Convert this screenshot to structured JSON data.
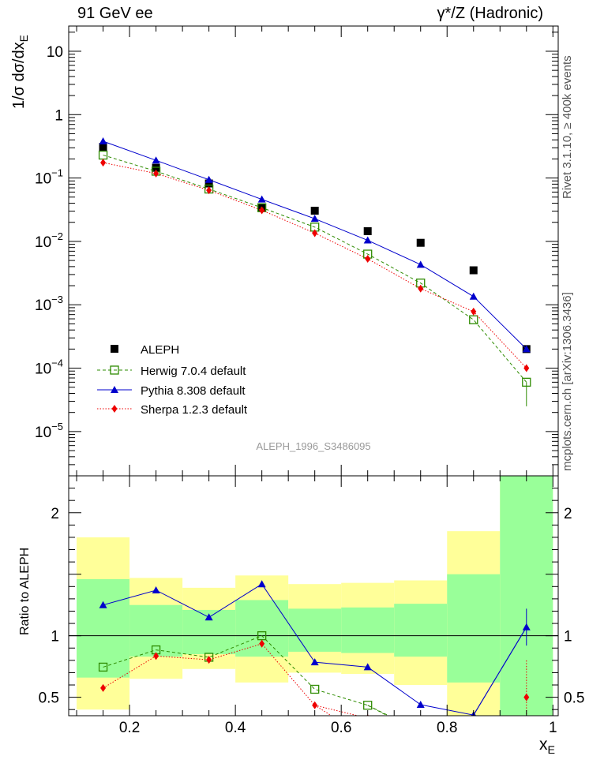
{
  "header": {
    "left": "91 GeV ee",
    "right": "γ*/Z (Hadronic)"
  },
  "side_labels": {
    "rivet": "Rivet 3.1.10, ≥ 400k events",
    "mcplots": "mcplots.cern.ch [arXiv:1306.3436]"
  },
  "chart_data": [
    {
      "type": "scatter",
      "panel": "main",
      "ylabel": "1/σ dσ/dx_E",
      "yscale": "log",
      "ylim": [
        2e-06,
        25
      ],
      "xlim": [
        0.085,
        1.01
      ],
      "y_ticks": [
        {
          "value": 10,
          "label": "10"
        },
        {
          "value": 1,
          "label": "1"
        },
        {
          "value": 0.1,
          "label": "10^-1"
        },
        {
          "value": 0.01,
          "label": "10^-2"
        },
        {
          "value": 0.001,
          "label": "10^-3"
        },
        {
          "value": 0.0001,
          "label": "10^-4"
        },
        {
          "value": 1e-05,
          "label": "10^-5"
        }
      ],
      "watermark": "ALEPH_1996_S3486095",
      "x": [
        0.15,
        0.25,
        0.35,
        0.45,
        0.55,
        0.65,
        0.75,
        0.85,
        0.95
      ],
      "series": [
        {
          "name": "ALEPH",
          "color": "#000000",
          "marker": "square-filled",
          "values": [
            0.31,
            0.145,
            0.082,
            0.034,
            0.0305,
            0.0145,
            0.0095,
            0.0035,
            0.0002
          ]
        },
        {
          "name": "Herwig 7.0.4 default",
          "color": "#2e8b00",
          "marker": "square-open",
          "line": "dashed",
          "values": [
            0.23,
            0.128,
            0.067,
            0.034,
            0.0168,
            0.0063,
            0.0022,
            0.00058,
            6e-05
          ]
        },
        {
          "name": "Pythia 8.308 default",
          "color": "#0000cc",
          "marker": "triangle-filled",
          "line": "solid",
          "values": [
            0.38,
            0.19,
            0.094,
            0.046,
            0.0228,
            0.0104,
            0.0043,
            0.00135,
            0.0002
          ]
        },
        {
          "name": "Sherpa 1.2.3 default",
          "color": "#ee0000",
          "marker": "diamond-filled",
          "line": "dotted",
          "values": [
            0.175,
            0.118,
            0.064,
            0.031,
            0.0135,
            0.0053,
            0.0018,
            0.00078,
            0.0001
          ]
        }
      ]
    },
    {
      "type": "line",
      "panel": "ratio",
      "ylabel": "Ratio to ALEPH",
      "xlabel": "x_E",
      "ylim": [
        0.35,
        2.3
      ],
      "xlim": [
        0.085,
        1.01
      ],
      "x_ticks": [
        {
          "value": 0.2,
          "label": "0.2"
        },
        {
          "value": 0.4,
          "label": "0.4"
        },
        {
          "value": 0.6,
          "label": "0.6"
        },
        {
          "value": 0.8,
          "label": "0.8"
        },
        {
          "value": 1.0,
          "label": "1"
        }
      ],
      "y_ticks": [
        {
          "value": 2,
          "label": "2"
        },
        {
          "value": 1,
          "label": "1"
        },
        {
          "value": 0.5,
          "label": "0.5"
        }
      ],
      "bands": [
        {
          "x0": 0.1,
          "x1": 0.2,
          "yellow": [
            0.4,
            1.8
          ],
          "green": [
            0.66,
            1.46
          ]
        },
        {
          "x0": 0.2,
          "x1": 0.3,
          "yellow": [
            0.65,
            1.47
          ],
          "green": [
            0.83,
            1.25
          ]
        },
        {
          "x0": 0.3,
          "x1": 0.4,
          "yellow": [
            0.73,
            1.39
          ],
          "green": [
            0.85,
            1.21
          ]
        },
        {
          "x0": 0.4,
          "x1": 0.5,
          "yellow": [
            0.62,
            1.49
          ],
          "green": [
            0.83,
            1.29
          ]
        },
        {
          "x0": 0.5,
          "x1": 0.6,
          "yellow": [
            0.7,
            1.42
          ],
          "green": [
            0.87,
            1.22
          ]
        },
        {
          "x0": 0.6,
          "x1": 0.7,
          "yellow": [
            0.69,
            1.43
          ],
          "green": [
            0.86,
            1.23
          ]
        },
        {
          "x0": 0.7,
          "x1": 0.8,
          "yellow": [
            0.6,
            1.45
          ],
          "green": [
            0.83,
            1.26
          ]
        },
        {
          "x0": 0.8,
          "x1": 0.9,
          "yellow": [
            0.2,
            1.85
          ],
          "green": [
            0.62,
            1.5
          ]
        },
        {
          "x0": 0.9,
          "x1": 1.0,
          "yellow": [
            0.2,
            3.0
          ],
          "green": [
            0.2,
            3.0
          ]
        }
      ],
      "x": [
        0.15,
        0.25,
        0.35,
        0.45,
        0.55,
        0.65,
        0.75,
        0.85,
        0.95
      ],
      "series": [
        {
          "name": "Herwig 7.0.4 default",
          "color": "#2e8b00",
          "marker": "square-open",
          "line": "dashed",
          "values": [
            0.745,
            0.885,
            0.825,
            1.0,
            0.565,
            0.435,
            0.22,
            null,
            null
          ]
        },
        {
          "name": "Pythia 8.308 default",
          "color": "#0000cc",
          "marker": "triangle-filled",
          "line": "solid",
          "values": [
            1.25,
            1.37,
            1.15,
            1.42,
            0.785,
            0.745,
            0.44,
            0.355,
            1.07
          ],
          "errors": [
            null,
            null,
            null,
            null,
            null,
            null,
            0.02,
            0.02,
            0.15
          ]
        },
        {
          "name": "Sherpa 1.2.3 default",
          "color": "#ee0000",
          "marker": "diamond-filled",
          "line": "dotted",
          "values": [
            0.575,
            0.835,
            0.805,
            0.935,
            0.435,
            0.33,
            null,
            null,
            0.5
          ],
          "errors": [
            null,
            null,
            null,
            null,
            0.02,
            null,
            null,
            null,
            0.3
          ]
        }
      ]
    }
  ]
}
